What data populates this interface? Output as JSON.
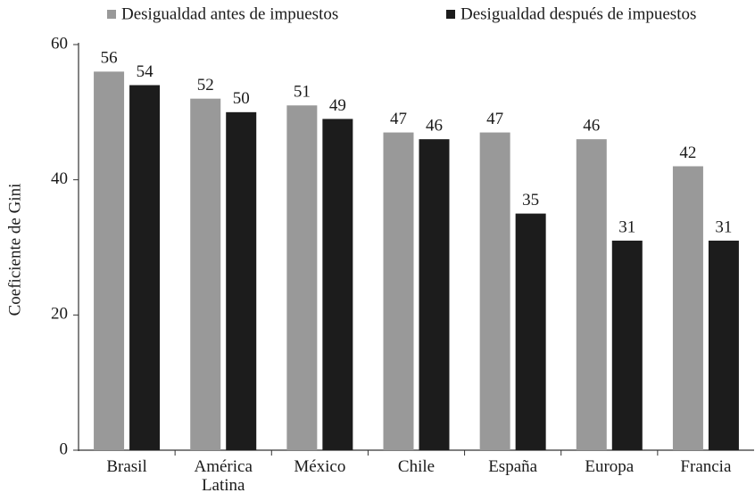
{
  "chart_data": {
    "type": "bar",
    "y_label": "Coeficiente de Gini",
    "categories": [
      "Brasil",
      "América Latina",
      "México",
      "Chile",
      "España",
      "Europa",
      "Francia"
    ],
    "series": [
      {
        "name": "Desigualdad antes de impuestos",
        "color": "#999999",
        "values": [
          56,
          52,
          51,
          47,
          47,
          46,
          42
        ]
      },
      {
        "name": "Desigualdad después de impuestos",
        "color": "#1c1c1c",
        "values": [
          54,
          50,
          49,
          46,
          35,
          31,
          31
        ]
      }
    ],
    "ylim": [
      0,
      60
    ],
    "yticks": [
      0,
      20,
      40,
      60
    ],
    "grid": false,
    "legend": "top"
  }
}
